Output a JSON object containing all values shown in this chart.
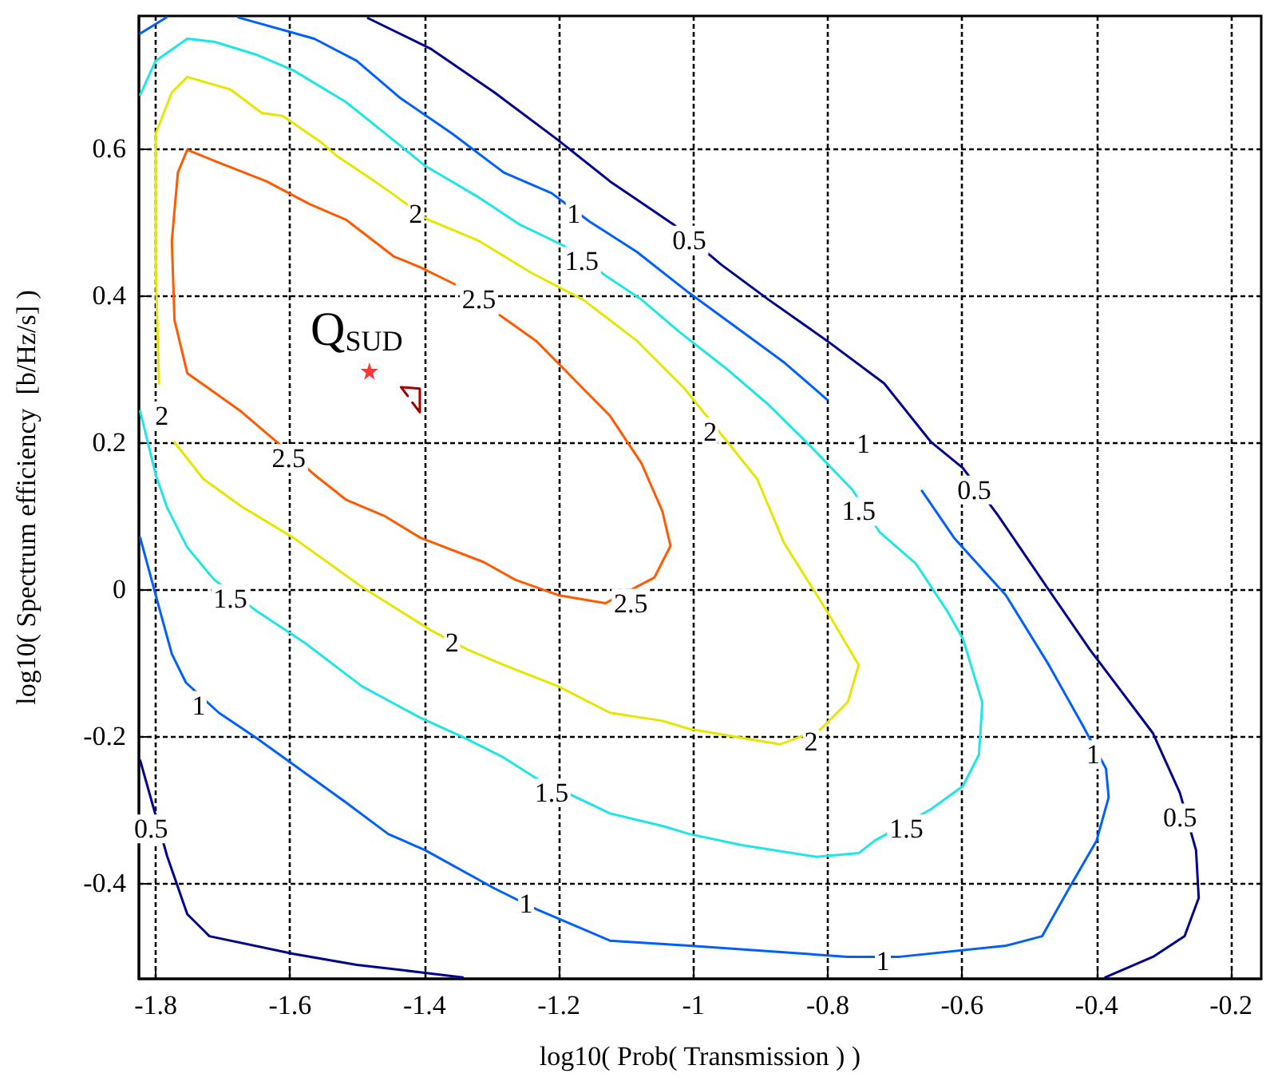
{
  "chart_data": {
    "type": "line",
    "xlabel": "log10( Prob( Transmission ) )",
    "ylabel": "log10( Spectrum efficiency  [b/Hz/s] )",
    "xlim": [
      -1.825,
      -0.155
    ],
    "ylim": [
      -0.53,
      0.78
    ],
    "xticks": [
      -1.8,
      -1.6,
      -1.4,
      -1.2,
      -1,
      -0.8,
      -0.6,
      -0.4,
      -0.2
    ],
    "yticks": [
      -0.4,
      -0.2,
      0,
      0.2,
      0.4,
      0.6
    ],
    "grid": true,
    "marker": "none",
    "line_style": "solid",
    "series": [
      {
        "color": "#00008f",
        "x": [
          -1.484,
          -1.39,
          -1.296,
          -1.201,
          -1.124,
          -1.029,
          -0.959,
          -0.888,
          -0.801,
          -0.716,
          -0.646,
          -0.599,
          -0.547,
          -0.471,
          -0.41,
          -0.316,
          -0.276,
          -0.252,
          -0.248,
          -0.269,
          -0.316,
          -0.387
        ],
        "values": [
          0.777,
          0.735,
          0.676,
          0.611,
          0.555,
          0.496,
          0.442,
          0.394,
          0.338,
          0.28,
          0.2,
          0.165,
          0.101,
          -0.001,
          -0.082,
          -0.196,
          -0.277,
          -0.355,
          -0.42,
          -0.472,
          -0.5,
          -0.528
        ]
      },
      {
        "color": "#00008f",
        "x": [
          -1.823,
          -1.783,
          -1.753,
          -1.72,
          -1.595,
          -1.501,
          -1.407,
          -1.343
        ],
        "values": [
          -0.233,
          -0.363,
          -0.442,
          -0.472,
          -0.496,
          -0.511,
          -0.521,
          -0.528
        ]
      },
      {
        "color": "#0060ff",
        "x": [
          -1.823,
          -1.784
        ],
        "values": [
          0.756,
          0.778
        ]
      },
      {
        "color": "#0060ff",
        "x": [
          -1.677,
          -1.564,
          -1.501,
          -1.437,
          -1.359,
          -1.282,
          -1.211,
          -1.154,
          -1.084,
          -1.006,
          -0.928,
          -0.864,
          -0.801,
          -0.747,
          -0.66,
          -0.612,
          -0.535,
          -0.471,
          -0.422,
          -0.386,
          -0.382,
          -0.4,
          -0.441,
          -0.481,
          -0.535,
          -0.693,
          -0.77,
          -1.006,
          -1.124,
          -1.234,
          -1.296,
          -1.399,
          -1.454,
          -1.517,
          -1.602,
          -1.649,
          -1.706,
          -1.755,
          -1.776,
          -1.8,
          -1.823
        ],
        "values": [
          0.778,
          0.749,
          0.719,
          0.669,
          0.62,
          0.567,
          0.539,
          0.5,
          0.459,
          0.403,
          0.351,
          0.308,
          0.258,
          null,
          0.134,
          0.07,
          -0.008,
          -0.103,
          -0.183,
          -0.244,
          -0.283,
          -0.342,
          -0.407,
          -0.472,
          -0.485,
          -0.5,
          -0.5,
          -0.485,
          -0.478,
          -0.435,
          -0.407,
          -0.355,
          -0.333,
          -0.29,
          -0.234,
          -0.203,
          -0.168,
          -0.127,
          -0.088,
          -0.008,
          0.07
        ]
      },
      {
        "color": "#1ee6e6",
        "x": [
          -1.823,
          -1.8,
          -1.753,
          -1.713,
          -1.649,
          -1.595,
          -1.517,
          -1.446,
          -1.399,
          -1.319,
          -1.258,
          -1.194,
          -1.131,
          -1.077,
          -1.022,
          -0.952,
          -0.888,
          -0.824,
          -0.763,
          -0.723,
          -0.669,
          -0.622,
          -0.599,
          -0.57,
          -0.575,
          -0.599,
          -0.646,
          -0.73,
          -0.754,
          -0.817,
          -0.928,
          -1.006,
          -1.046,
          -1.124,
          -1.234,
          -1.282,
          -1.343,
          -1.406,
          -1.493,
          -1.578,
          -1.649,
          -1.713,
          -1.753,
          -1.783,
          -1.8,
          -1.823
        ],
        "values": [
          0.673,
          0.719,
          0.749,
          0.745,
          0.727,
          0.706,
          0.663,
          0.611,
          0.576,
          0.533,
          0.496,
          0.468,
          0.427,
          0.394,
          0.351,
          0.301,
          0.251,
          0.193,
          0.135,
          0.078,
          0.035,
          -0.03,
          -0.067,
          -0.154,
          -0.225,
          -0.268,
          -0.299,
          -0.342,
          -0.359,
          -0.364,
          -0.348,
          -0.333,
          -0.322,
          -0.305,
          -0.257,
          -0.229,
          -0.201,
          -0.175,
          -0.132,
          -0.073,
          -0.03,
          0.013,
          0.057,
          0.111,
          0.156,
          0.242
        ]
      },
      {
        "color": "#e6e600",
        "x": [
          -1.795,
          -1.8,
          -1.8,
          -1.776,
          -1.753,
          -1.689,
          -1.642,
          -1.611,
          -1.555,
          -1.531,
          -1.484,
          -1.449,
          -1.395,
          -1.319,
          -1.242,
          -1.164,
          -1.084,
          -1.013,
          -0.905,
          -0.865,
          -0.801,
          -0.754,
          -0.77,
          -0.81,
          -0.871,
          -1.006,
          -1.046,
          -1.124,
          -1.201,
          -1.282,
          -1.336,
          -1.39,
          -1.493,
          -1.595,
          -1.673,
          -1.729,
          -1.772
        ],
        "values": [
          0.28,
          0.438,
          0.62,
          0.676,
          0.697,
          0.68,
          0.648,
          0.644,
          0.609,
          0.59,
          0.561,
          0.539,
          0.503,
          0.474,
          0.431,
          0.394,
          0.338,
          0.273,
          0.15,
          0.063,
          -0.03,
          -0.103,
          -0.153,
          -0.19,
          -0.211,
          -0.19,
          -0.179,
          -0.168,
          -0.132,
          -0.103,
          -0.082,
          -0.056,
          0.003,
          0.07,
          0.113,
          0.15,
          0.2
        ]
      },
      {
        "color": "#ff5a00",
        "x": [
          -1.288,
          -1.234,
          -1.178,
          -1.124,
          -1.077,
          -1.046,
          -1.034,
          -1.058,
          -1.131,
          -1.201,
          -1.265,
          -1.312,
          -1.406,
          -1.46,
          -1.517,
          -1.564,
          -1.618,
          -1.673,
          -1.753,
          -1.772,
          -1.776,
          -1.767,
          -1.753,
          -1.713,
          -1.635,
          -1.571,
          -1.517,
          -1.446,
          -1.406,
          -1.355
        ],
        "values": [
          0.373,
          0.338,
          0.286,
          0.236,
          0.171,
          0.106,
          0.059,
          0.016,
          -0.019,
          -0.008,
          0.013,
          0.037,
          0.07,
          0.1,
          0.122,
          0.156,
          0.199,
          0.242,
          0.294,
          0.366,
          0.474,
          0.567,
          0.598,
          0.583,
          0.555,
          0.524,
          0.503,
          0.453,
          0.438,
          0.415
        ]
      },
      {
        "color": "#a00000",
        "x": [
          -1.425,
          -1.435,
          -1.407,
          -1.407,
          -1.418
        ],
        "values": [
          0.263,
          0.275,
          0.273,
          0.241,
          0.254
        ]
      },
      {
        "type": "scatter",
        "marker": "star",
        "color": "#ff0000",
        "x": [
          -1.482
        ],
        "values": [
          0.297
        ]
      }
    ],
    "annotations": [
      {
        "text": "Q$_{SUD}$",
        "x": -1.482,
        "y": 0.297
      },
      {
        "text": "0.5",
        "x": -1.006,
        "y": 0.475
      },
      {
        "text": "0.5",
        "x": -0.582,
        "y": 0.135
      },
      {
        "text": "0.5",
        "x": -0.276,
        "y": -0.311
      },
      {
        "text": "0.5",
        "x": -1.807,
        "y": -0.326
      },
      {
        "text": "1",
        "x": -1.178,
        "y": 0.511
      },
      {
        "text": "1",
        "x": -0.747,
        "y": 0.198
      },
      {
        "text": "1",
        "x": -0.405,
        "y": -0.225
      },
      {
        "text": "1",
        "x": -0.718,
        "y": -0.506
      },
      {
        "text": "1",
        "x": -1.249,
        "y": -0.428
      },
      {
        "text": "1",
        "x": -1.736,
        "y": -0.158
      },
      {
        "text": "1.5",
        "x": -1.166,
        "y": 0.446
      },
      {
        "text": "1.5",
        "x": -0.754,
        "y": 0.106
      },
      {
        "text": "1.5",
        "x": -0.683,
        "y": -0.326
      },
      {
        "text": "1.5",
        "x": -1.211,
        "y": -0.277
      },
      {
        "text": "1.5",
        "x": -1.689,
        "y": -0.013
      },
      {
        "text": "2",
        "x": -1.413,
        "y": 0.511
      },
      {
        "text": "2",
        "x": -0.975,
        "y": 0.214
      },
      {
        "text": "2",
        "x": -0.825,
        "y": -0.207
      },
      {
        "text": "2",
        "x": -1.359,
        "y": -0.073
      },
      {
        "text": "2",
        "x": -1.791,
        "y": 0.236
      },
      {
        "text": "2.5",
        "x": -1.319,
        "y": 0.394
      },
      {
        "text": "2.5",
        "x": -1.093,
        "y": -0.019
      },
      {
        "text": "2.5",
        "x": -1.602,
        "y": 0.178
      }
    ]
  }
}
